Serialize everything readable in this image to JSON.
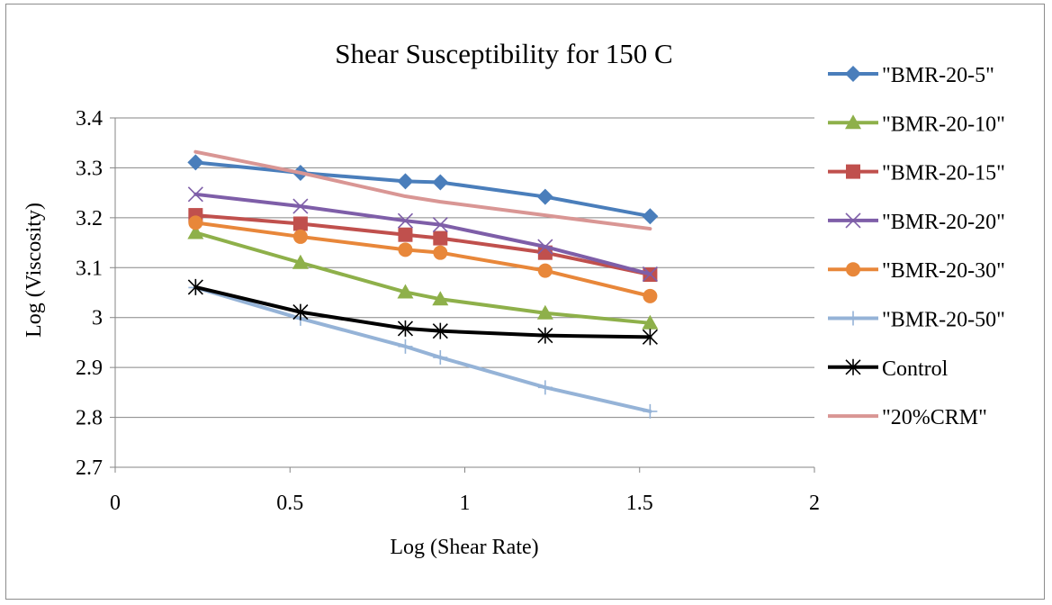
{
  "chart_data": {
    "type": "line",
    "title": "Shear Susceptibility for 150 C",
    "xlabel": "Log (Shear Rate)",
    "ylabel": "Log (Viscosity)",
    "xlim": [
      0,
      2
    ],
    "ylim": [
      2.7,
      3.4
    ],
    "x_ticks": [
      "0",
      "0.5",
      "1",
      "1.5",
      "2"
    ],
    "y_ticks": [
      "2.7",
      "2.8",
      "2.9",
      "3",
      "3.1",
      "3.2",
      "3.3",
      "3.4"
    ],
    "grid": "horizontal",
    "legend_position": "right",
    "series": [
      {
        "name": "\"BMR-20-5\"",
        "color": "#4a7ebb",
        "marker": "diamond",
        "x": [
          0.23,
          0.53,
          0.83,
          0.93,
          1.23,
          1.53
        ],
        "y": [
          3.311,
          3.29,
          3.273,
          3.271,
          3.242,
          3.203
        ]
      },
      {
        "name": "\"BMR-20-10\"",
        "color": "#8eb04a",
        "marker": "triangle",
        "x": [
          0.23,
          0.53,
          0.83,
          0.93,
          1.23,
          1.53
        ],
        "y": [
          3.17,
          3.11,
          3.051,
          3.037,
          3.009,
          2.989
        ]
      },
      {
        "name": "\"BMR-20-15\"",
        "color": "#c0504d",
        "marker": "square",
        "x": [
          0.23,
          0.53,
          0.83,
          0.93,
          1.23,
          1.53
        ],
        "y": [
          3.205,
          3.188,
          3.166,
          3.159,
          3.13,
          3.086
        ]
      },
      {
        "name": "\"BMR-20-20\"",
        "color": "#7e5ea8",
        "marker": "x",
        "x": [
          0.23,
          0.53,
          0.83,
          0.93,
          1.23,
          1.53
        ],
        "y": [
          3.247,
          3.223,
          3.194,
          3.186,
          3.142,
          3.087
        ]
      },
      {
        "name": "\"BMR-20-30\"",
        "color": "#e8873a",
        "marker": "circle",
        "x": [
          0.23,
          0.53,
          0.83,
          0.93,
          1.23,
          1.53
        ],
        "y": [
          3.19,
          3.162,
          3.136,
          3.13,
          3.094,
          3.043
        ]
      },
      {
        "name": "\"BMR-20-50\"",
        "color": "#95b3d7",
        "marker": "plus",
        "x": [
          0.23,
          0.53,
          0.83,
          0.93,
          1.23,
          1.53
        ],
        "y": [
          3.06,
          2.998,
          2.942,
          2.92,
          2.86,
          2.812
        ]
      },
      {
        "name": "Control",
        "color": "#000000",
        "marker": "star",
        "x": [
          0.23,
          0.53,
          0.83,
          0.93,
          1.23,
          1.53
        ],
        "y": [
          3.061,
          3.011,
          2.978,
          2.973,
          2.964,
          2.961
        ]
      },
      {
        "name": "\"20%CRM\"",
        "color": "#d99694",
        "marker": "none",
        "x": [
          0.23,
          0.53,
          0.83,
          0.93,
          1.23,
          1.53
        ],
        "y": [
          3.332,
          3.29,
          3.243,
          3.232,
          3.205,
          3.178
        ]
      }
    ]
  }
}
